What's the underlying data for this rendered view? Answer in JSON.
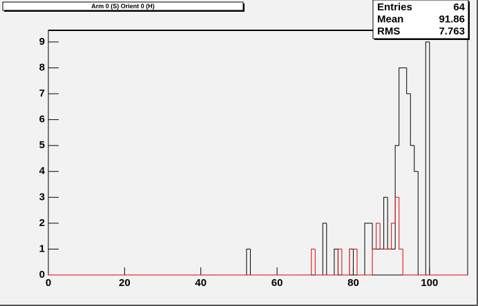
{
  "chart_data": {
    "type": "histogram",
    "title": "Arm 0 (S) Orient 0 (H)",
    "bins": [
      0,
      1,
      2,
      3,
      4,
      5,
      6,
      7,
      8,
      9,
      10,
      11,
      12,
      13,
      14,
      15,
      16,
      17,
      18,
      19,
      20,
      21,
      22,
      23,
      24,
      25,
      26,
      27,
      28,
      29,
      30,
      31,
      32,
      33,
      34,
      35,
      36,
      37,
      38,
      39,
      40,
      41,
      42,
      43,
      44,
      45,
      46,
      47,
      48,
      49,
      50,
      51,
      52,
      53,
      54,
      55,
      56,
      57,
      58,
      59,
      60,
      61,
      62,
      63,
      64,
      65,
      66,
      67,
      68,
      69,
      70,
      71,
      72,
      73,
      74,
      75,
      76,
      77,
      78,
      79,
      80,
      81,
      82,
      83,
      84,
      85,
      86,
      87,
      88,
      89,
      90,
      91,
      92,
      93,
      94,
      95,
      96,
      97,
      98,
      99,
      100,
      101,
      102,
      103,
      104,
      105,
      106,
      107,
      108,
      109,
      110
    ],
    "series": [
      {
        "color": "#000000",
        "values": [
          0,
          0,
          0,
          0,
          0,
          0,
          0,
          0,
          0,
          0,
          0,
          0,
          0,
          0,
          0,
          0,
          0,
          0,
          0,
          0,
          0,
          0,
          0,
          0,
          0,
          0,
          0,
          0,
          0,
          0,
          0,
          0,
          0,
          0,
          0,
          0,
          0,
          0,
          0,
          0,
          0,
          0,
          0,
          0,
          0,
          0,
          0,
          0,
          0,
          0,
          0,
          0,
          1,
          0,
          0,
          0,
          0,
          0,
          0,
          0,
          0,
          0,
          0,
          0,
          0,
          0,
          0,
          0,
          0,
          0,
          0,
          0,
          2,
          0,
          0,
          1,
          0,
          0,
          0,
          1,
          0,
          0,
          0,
          2,
          2,
          1,
          1,
          1,
          3,
          1,
          1,
          5,
          8,
          8,
          7,
          5,
          4,
          0,
          0,
          9,
          0,
          0,
          0,
          0,
          0,
          0,
          0,
          0,
          0,
          0
        ]
      },
      {
        "color": "#dd0000",
        "values": [
          0,
          0,
          0,
          0,
          0,
          0,
          0,
          0,
          0,
          0,
          0,
          0,
          0,
          0,
          0,
          0,
          0,
          0,
          0,
          0,
          0,
          0,
          0,
          0,
          0,
          0,
          0,
          0,
          0,
          0,
          0,
          0,
          0,
          0,
          0,
          0,
          0,
          0,
          0,
          0,
          0,
          0,
          0,
          0,
          0,
          0,
          0,
          0,
          0,
          0,
          0,
          0,
          0,
          0,
          0,
          0,
          0,
          0,
          0,
          0,
          0,
          0,
          0,
          0,
          0,
          0,
          0,
          0,
          0,
          1,
          0,
          0,
          0,
          0,
          0,
          0,
          1,
          0,
          0,
          1,
          1,
          0,
          0,
          0,
          0,
          1,
          2,
          1,
          1,
          1,
          2,
          3,
          1,
          0,
          0,
          0,
          0,
          0,
          0,
          0,
          0,
          0,
          0,
          0,
          0,
          0,
          0,
          0,
          0,
          0
        ]
      }
    ],
    "xlim": [
      0,
      110
    ],
    "xticks": [
      0,
      20,
      40,
      60,
      80,
      100
    ],
    "ylim": [
      0,
      9.45
    ],
    "yticks": [
      0,
      1,
      2,
      3,
      4,
      5,
      6,
      7,
      8,
      9
    ],
    "stats": [
      {
        "label": "Entries",
        "value": 64
      },
      {
        "label": "Mean",
        "value": 91.86
      },
      {
        "label": "RMS",
        "value": 7.763
      }
    ]
  }
}
